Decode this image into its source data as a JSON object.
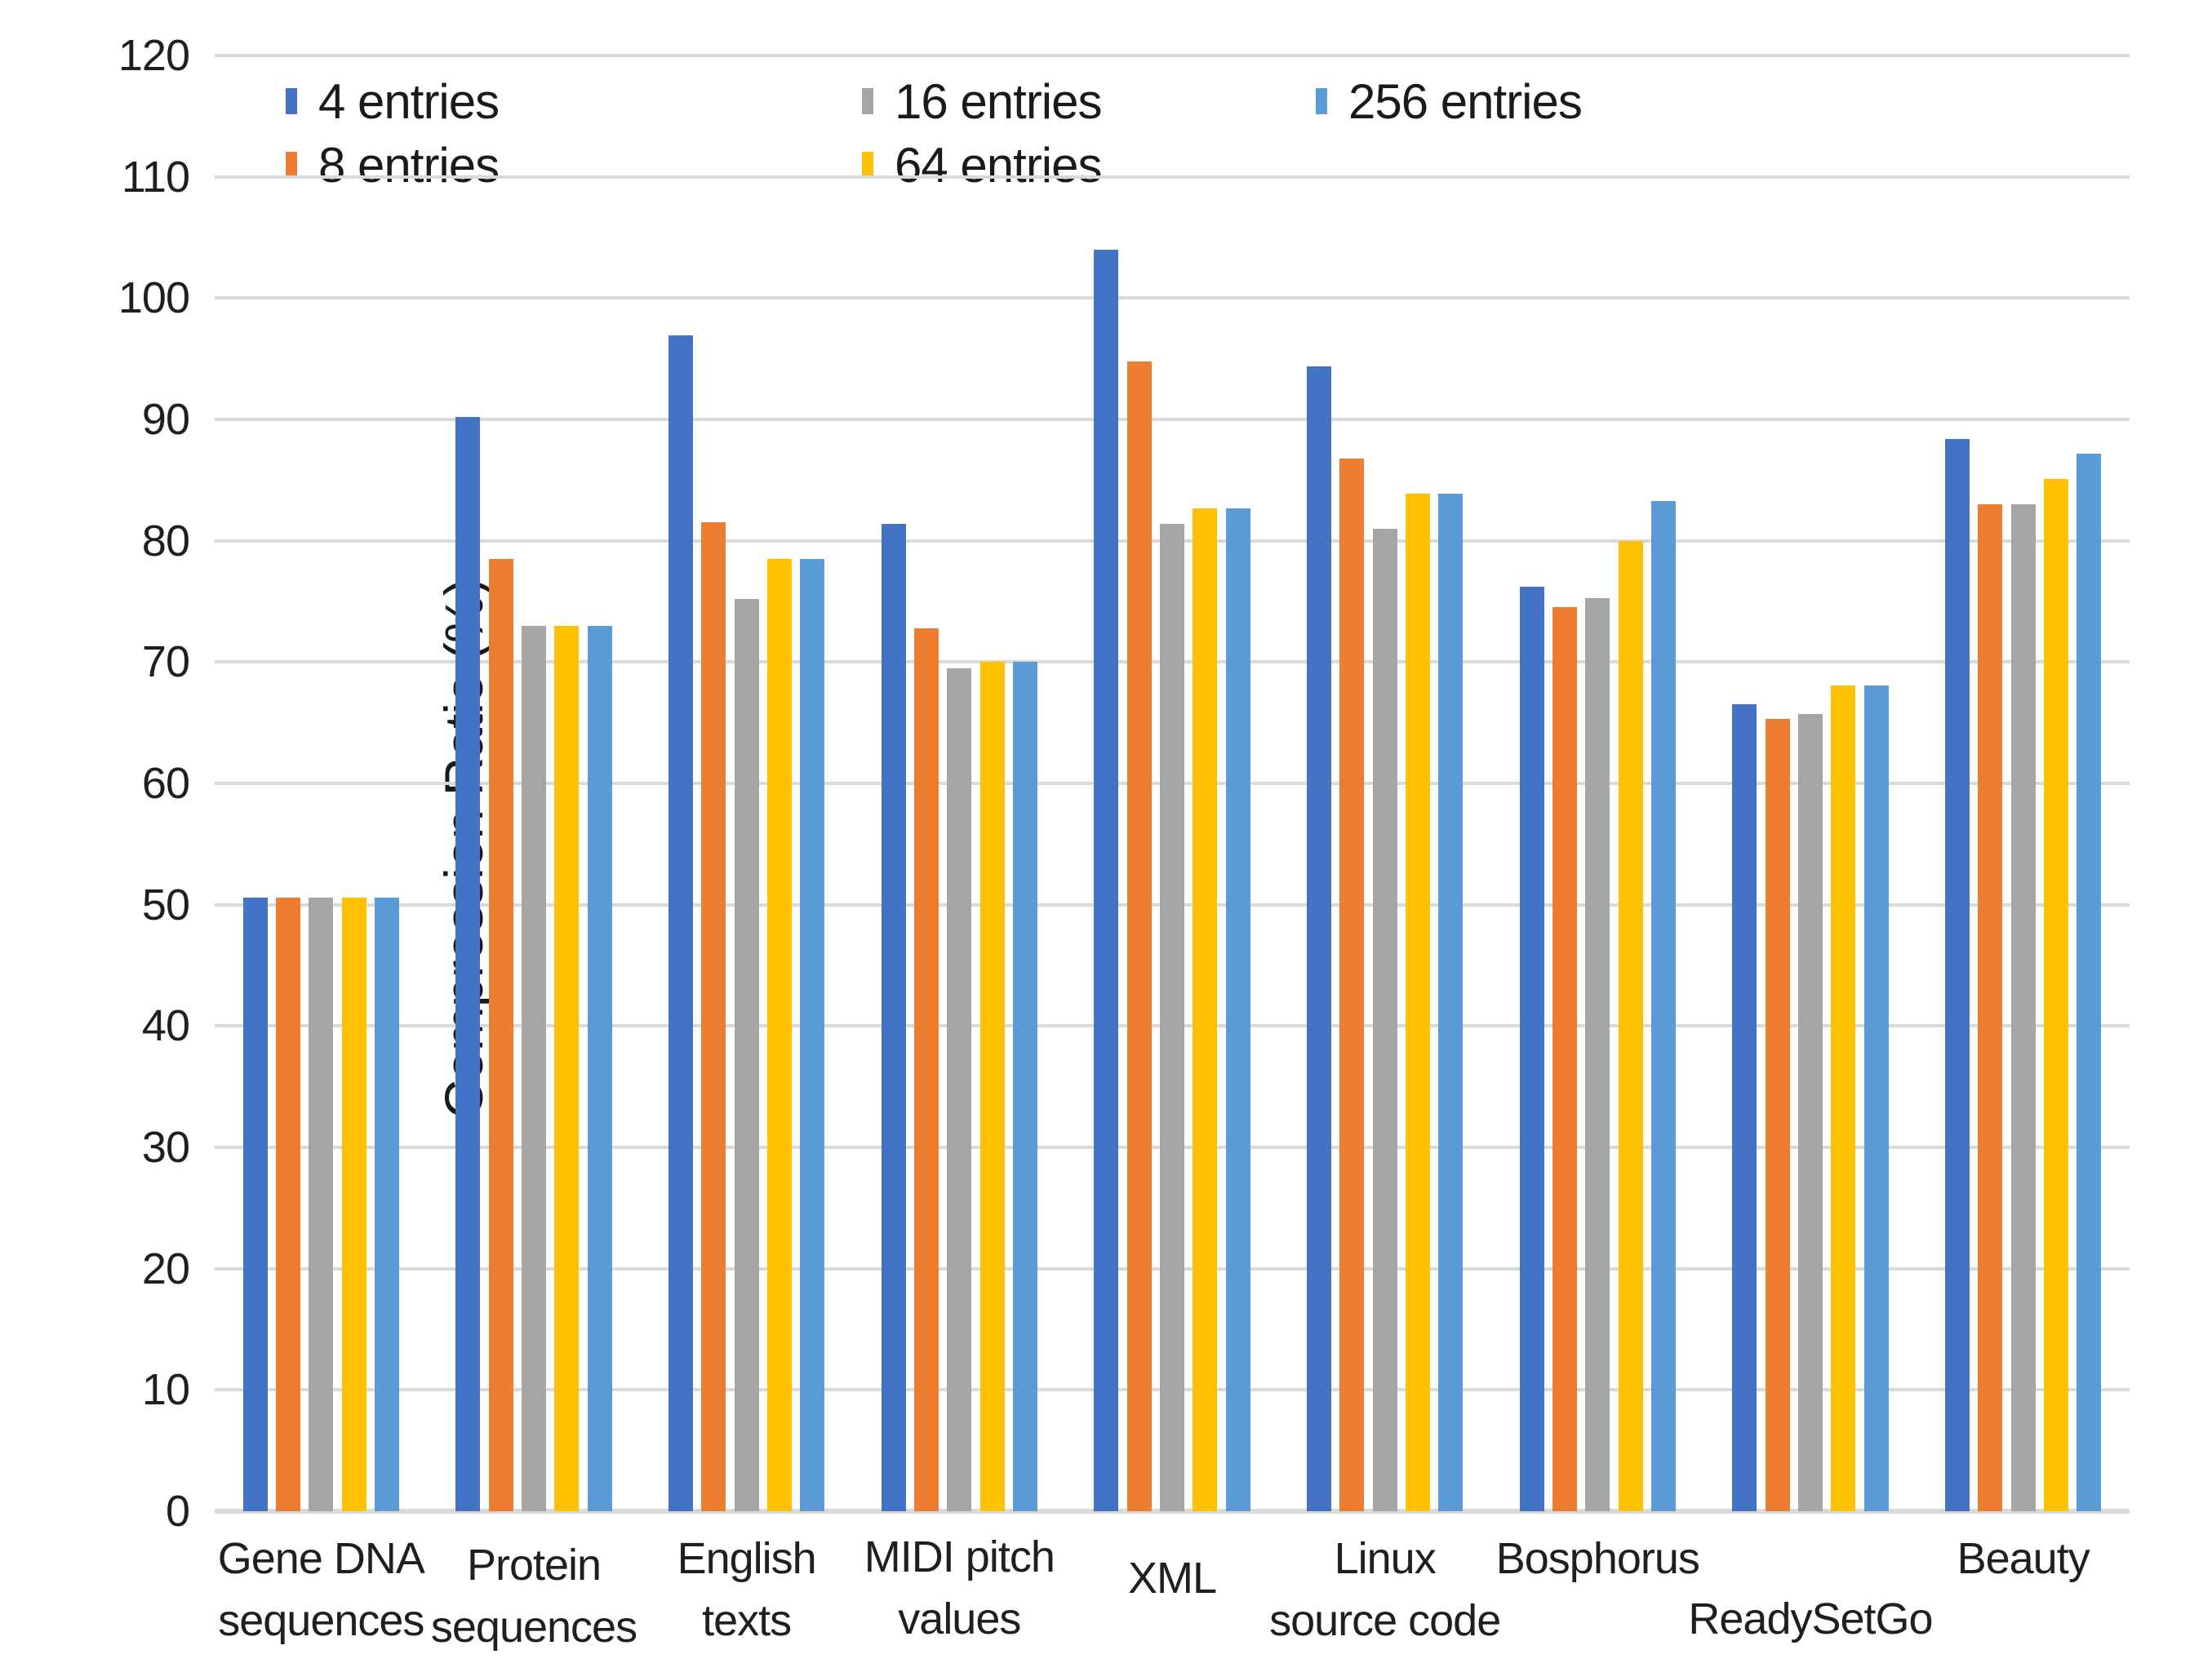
{
  "chart_data": {
    "type": "bar",
    "title": "",
    "xlabel": "",
    "ylabel": "Compression Ratio (%)",
    "ylim": [
      0,
      120
    ],
    "yticks": [
      0,
      10,
      20,
      30,
      40,
      50,
      60,
      70,
      80,
      90,
      100,
      110,
      120
    ],
    "grid": "horizontal",
    "legend_position": "top",
    "categories": [
      "Gene DNA sequences",
      "Protein sequences",
      "English texts",
      "MIDI pitch values",
      "XML",
      "Linux source code",
      "Bosphorus",
      "ReadySetGo",
      "Beauty"
    ],
    "category_label_lines": [
      [
        "Gene DNA",
        "sequences"
      ],
      [
        "Protein",
        "sequences"
      ],
      [
        "English",
        "texts"
      ],
      [
        "MIDI pitch",
        "values"
      ],
      [
        "XML"
      ],
      [
        "Linux",
        "source code"
      ],
      [
        "Bosphorus"
      ],
      [
        "ReadySetGo"
      ],
      [
        "Beauty"
      ]
    ],
    "series": [
      {
        "name": "4 entries",
        "color": "#4472C4",
        "values": [
          50.6,
          90.2,
          96.9,
          81.4,
          104.0,
          94.4,
          76.2,
          66.5,
          88.4
        ]
      },
      {
        "name": "8 entries",
        "color": "#ED7D31",
        "values": [
          50.6,
          78.5,
          81.5,
          72.8,
          94.8,
          86.8,
          74.5,
          65.3,
          83.0
        ]
      },
      {
        "name": "16 entries",
        "color": "#A5A5A5",
        "values": [
          50.6,
          73.0,
          75.2,
          69.5,
          81.4,
          81.0,
          75.3,
          65.7,
          83.0
        ]
      },
      {
        "name": "64 entries",
        "color": "#FFC000",
        "values": [
          50.6,
          73.0,
          78.5,
          70.0,
          82.7,
          83.9,
          80.0,
          68.1,
          85.1
        ]
      },
      {
        "name": "256 entries",
        "color": "#5B9BD5",
        "values": [
          50.6,
          73.0,
          78.5,
          70.0,
          82.7,
          83.9,
          83.3,
          68.1,
          87.2
        ]
      }
    ]
  },
  "colors": {
    "gridline": "#D9D9D9",
    "axis_text": "#1F1F1F"
  }
}
